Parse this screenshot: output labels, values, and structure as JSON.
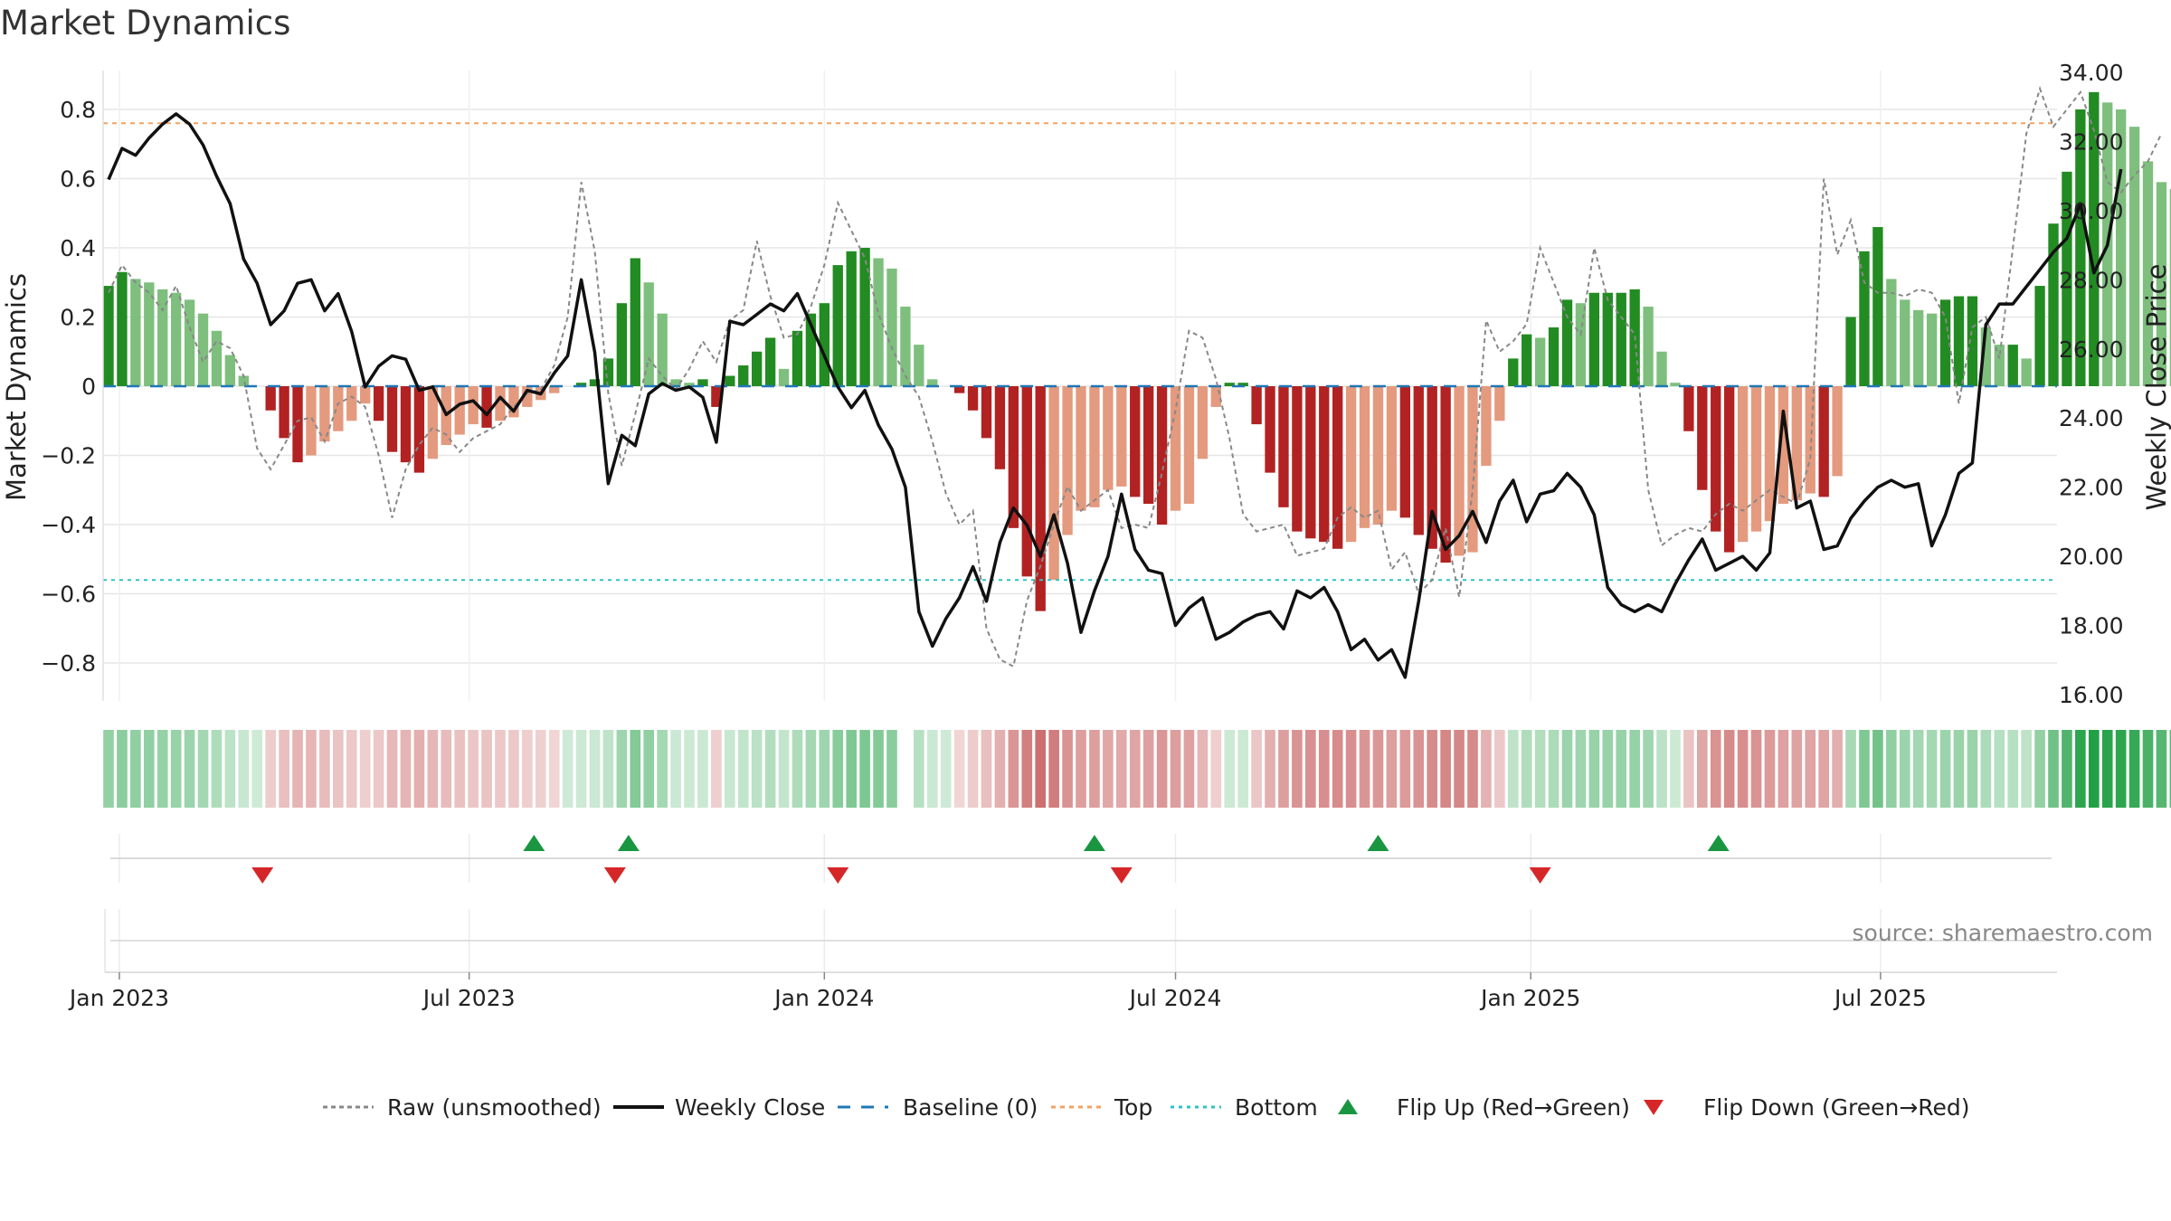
{
  "chart_data": {
    "type": "bar+line",
    "title": "Market Dynamics",
    "ylabel_left": "Market Dynamics",
    "ylabel_right": "Weekly Close Price",
    "ylim_left": [
      -0.9,
      0.92
    ],
    "ylim_right": [
      15.5,
      34.6
    ],
    "yticks_left": [
      0.8,
      0.6,
      0.4,
      0.2,
      0,
      -0.2,
      -0.4,
      -0.6,
      -0.8
    ],
    "yticks_left_labels": [
      "0.8",
      "0.6",
      "0.4",
      "0.2",
      "0",
      "−0.2",
      "−0.4",
      "−0.6",
      "−0.8"
    ],
    "yticks_right": [
      34,
      32,
      30,
      28,
      26,
      24,
      22,
      20,
      18,
      16
    ],
    "yticks_right_labels": [
      "34.00",
      "32.00",
      "30.00",
      "28.00",
      "26.00",
      "24.00",
      "22.00",
      "20.00",
      "18.00",
      "16.00"
    ],
    "x_week_start": 0,
    "x_week_end": 144,
    "x_ticks": [
      {
        "label": "Jan 2023",
        "week": 0.8
      },
      {
        "label": "Jul 2023",
        "week": 26.7
      },
      {
        "label": "Jan 2024",
        "week": 53.0
      },
      {
        "label": "Jul 2024",
        "week": 79.0
      },
      {
        "label": "Jan 2025",
        "week": 105.3
      },
      {
        "label": "Jul 2025",
        "week": 131.2
      }
    ],
    "top_line": 0.76,
    "bottom_line": -0.56,
    "baseline": 0,
    "weeks": 145,
    "bars": [
      0.29,
      0.33,
      0.31,
      0.3,
      0.28,
      0.27,
      0.25,
      0.21,
      0.16,
      0.09,
      0.03,
      0.0,
      -0.07,
      -0.15,
      -0.22,
      -0.2,
      -0.16,
      -0.13,
      -0.1,
      -0.05,
      -0.1,
      -0.19,
      -0.22,
      -0.25,
      -0.21,
      -0.17,
      -0.14,
      -0.11,
      -0.12,
      -0.1,
      -0.09,
      -0.06,
      -0.04,
      -0.02,
      0.0,
      0.01,
      0.02,
      0.08,
      0.24,
      0.37,
      0.3,
      0.21,
      0.02,
      0.01,
      0.02,
      -0.06,
      0.03,
      0.06,
      0.1,
      0.14,
      0.05,
      0.16,
      0.21,
      0.24,
      0.35,
      0.39,
      0.4,
      0.37,
      0.34,
      0.23,
      0.12,
      0.02,
      0.0,
      -0.02,
      -0.07,
      -0.15,
      -0.24,
      -0.41,
      -0.55,
      -0.65,
      -0.56,
      -0.43,
      -0.36,
      -0.35,
      -0.3,
      -0.29,
      -0.32,
      -0.34,
      -0.4,
      -0.36,
      -0.34,
      -0.21,
      -0.06,
      0.01,
      0.01,
      -0.11,
      -0.25,
      -0.35,
      -0.42,
      -0.44,
      -0.45,
      -0.47,
      -0.45,
      -0.41,
      -0.4,
      -0.36,
      -0.38,
      -0.43,
      -0.47,
      -0.51,
      -0.49,
      -0.48,
      -0.23,
      -0.1,
      0.08,
      0.15,
      0.14,
      0.17,
      0.25,
      0.24,
      0.27,
      0.27,
      0.27,
      0.28,
      0.23,
      0.1,
      0.01,
      -0.13,
      -0.3,
      -0.42,
      -0.48,
      -0.45,
      -0.42,
      -0.39,
      -0.34,
      -0.33,
      -0.31,
      -0.32,
      -0.26,
      0.2,
      0.39,
      0.46,
      0.31,
      0.25,
      0.22,
      0.21,
      0.25,
      0.26,
      0.26,
      0.17,
      0.12,
      0.12,
      0.08,
      0.29,
      0.47,
      0.62,
      0.8,
      0.85,
      0.82,
      0.8,
      0.75,
      0.65,
      0.59,
      0.57
    ],
    "raw": [
      0.27,
      0.35,
      0.3,
      0.27,
      0.22,
      0.29,
      0.17,
      0.07,
      0.13,
      0.11,
      0.03,
      -0.18,
      -0.24,
      -0.17,
      -0.1,
      -0.09,
      -0.16,
      -0.05,
      -0.03,
      -0.06,
      -0.2,
      -0.38,
      -0.24,
      -0.17,
      -0.12,
      -0.14,
      -0.19,
      -0.15,
      -0.13,
      -0.11,
      -0.06,
      -0.02,
      -0.01,
      0.06,
      0.2,
      0.59,
      0.39,
      -0.02,
      -0.23,
      -0.08,
      0.08,
      0.03,
      -0.01,
      0.05,
      0.13,
      0.07,
      0.19,
      0.22,
      0.42,
      0.26,
      0.14,
      0.15,
      0.23,
      0.35,
      0.53,
      0.45,
      0.37,
      0.21,
      0.11,
      0.03,
      -0.03,
      -0.16,
      -0.31,
      -0.4,
      -0.36,
      -0.7,
      -0.79,
      -0.81,
      -0.62,
      -0.52,
      -0.4,
      -0.29,
      -0.36,
      -0.33,
      -0.3,
      -0.41,
      -0.4,
      -0.41,
      -0.25,
      -0.07,
      0.16,
      0.14,
      0.02,
      -0.15,
      -0.37,
      -0.42,
      -0.41,
      -0.4,
      -0.49,
      -0.48,
      -0.47,
      -0.38,
      -0.35,
      -0.38,
      -0.36,
      -0.53,
      -0.48,
      -0.6,
      -0.56,
      -0.41,
      -0.61,
      -0.3,
      0.19,
      0.1,
      0.13,
      0.18,
      0.4,
      0.3,
      0.2,
      0.15,
      0.4,
      0.25,
      0.2,
      0.15,
      -0.3,
      -0.46,
      -0.43,
      -0.41,
      -0.42,
      -0.37,
      -0.34,
      -0.36,
      -0.33,
      -0.3,
      -0.32,
      -0.34,
      -0.21,
      0.6,
      0.38,
      0.48,
      0.3,
      0.27,
      0.27,
      0.26,
      0.28,
      0.27,
      0.2,
      -0.05,
      0.17,
      0.2,
      0.08,
      0.4,
      0.73,
      0.86,
      0.75,
      0.8,
      0.85,
      0.74,
      0.59,
      0.56,
      0.61,
      0.65,
      0.73
    ],
    "close": [
      30.9,
      31.8,
      31.6,
      32.1,
      32.5,
      32.8,
      32.5,
      31.9,
      31.0,
      30.2,
      28.6,
      27.9,
      26.7,
      27.1,
      27.9,
      28.0,
      27.1,
      27.6,
      26.5,
      24.9,
      25.5,
      25.8,
      25.7,
      24.8,
      24.9,
      24.1,
      24.4,
      24.5,
      24.1,
      24.6,
      24.2,
      24.8,
      24.7,
      25.3,
      25.8,
      28.0,
      25.9,
      22.1,
      23.5,
      23.2,
      24.7,
      25.0,
      24.8,
      24.9,
      24.6,
      23.3,
      26.8,
      26.7,
      27.0,
      27.3,
      27.1,
      27.6,
      26.7,
      25.8,
      24.9,
      24.3,
      24.8,
      23.8,
      23.1,
      22.0,
      18.4,
      17.4,
      18.2,
      18.8,
      19.7,
      18.7,
      20.4,
      21.4,
      20.9,
      20.0,
      21.2,
      19.8,
      17.8,
      19.0,
      20.0,
      21.8,
      20.2,
      19.6,
      19.5,
      18.0,
      18.5,
      18.8,
      17.6,
      17.8,
      18.1,
      18.3,
      18.4,
      17.9,
      19.0,
      18.8,
      19.1,
      18.4,
      17.3,
      17.6,
      17.0,
      17.3,
      16.5,
      18.7,
      21.3,
      20.2,
      20.6,
      21.3,
      20.4,
      21.6,
      22.2,
      21.0,
      21.8,
      21.9,
      22.4,
      22.0,
      21.2,
      19.1,
      18.6,
      18.4,
      18.6,
      18.4,
      19.2,
      19.9,
      20.5,
      19.6,
      19.8,
      20.0,
      19.6,
      20.1,
      24.2,
      21.4,
      21.6,
      20.2,
      20.3,
      21.1,
      21.6,
      22.0,
      22.2,
      22.0,
      22.1,
      20.3,
      21.2,
      22.4,
      22.7,
      26.7,
      27.3,
      27.3,
      27.8,
      28.3,
      28.8,
      29.2,
      30.2,
      28.2,
      29.0,
      31.2
    ],
    "heat_gap_weeks": [
      59
    ],
    "flip_up_weeks": [
      31.5,
      38.5,
      73.0,
      94.0,
      119.2
    ],
    "flip_down_weeks": [
      11.4,
      37.5,
      54.0,
      75.0,
      106.0
    ],
    "legend": [
      "Raw (unsmoothed)",
      "Weekly Close",
      "Baseline (0)",
      "Top",
      "Bottom",
      "Flip Up (Red→Green)",
      "Flip Down (Green→Red)"
    ],
    "source": "source: sharemaestro.com"
  },
  "colors": {
    "green_dark": "#228b22",
    "green_light": "#7ebf7e",
    "red_dark": "#b22222",
    "red_light": "#e49a7e",
    "close_line": "#111111",
    "raw_line": "#888888",
    "baseline": "#1f77b4",
    "top_line": "#f4a261",
    "bottom_line": "#2ec4c4",
    "flip_up": "#1a9641",
    "flip_down": "#d62728",
    "grid": "#e6e6e6"
  }
}
